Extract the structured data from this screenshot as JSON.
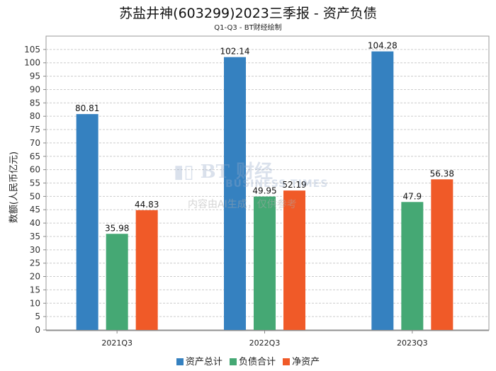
{
  "chart_data": {
    "type": "bar",
    "title": "苏盐井神(603299)2023三季报 - 资产负债",
    "subtitle": "Q1-Q3 - BT财经绘制",
    "xlabel": "",
    "ylabel": "数额(人民币亿元)",
    "categories": [
      "2021Q3",
      "2022Q3",
      "2023Q3"
    ],
    "series": [
      {
        "name": "资产总计",
        "color": "#3581c0",
        "values": [
          80.81,
          102.14,
          104.28
        ]
      },
      {
        "name": "负债合计",
        "color": "#45a874",
        "values": [
          35.98,
          49.95,
          47.9
        ]
      },
      {
        "name": "净资产",
        "color": "#f05a28",
        "values": [
          44.83,
          52.19,
          56.38
        ]
      }
    ],
    "ylim": [
      0,
      110
    ],
    "yticks": [
      0,
      5,
      10,
      15,
      20,
      25,
      30,
      35,
      40,
      45,
      50,
      55,
      60,
      65,
      70,
      75,
      80,
      85,
      90,
      95,
      100,
      105
    ],
    "grid": true,
    "legend": "bottom"
  },
  "watermark": {
    "logo": "BT财经",
    "sub": "BUSINESS TIMES",
    "note": "内容由AI生成，仅供参考"
  }
}
